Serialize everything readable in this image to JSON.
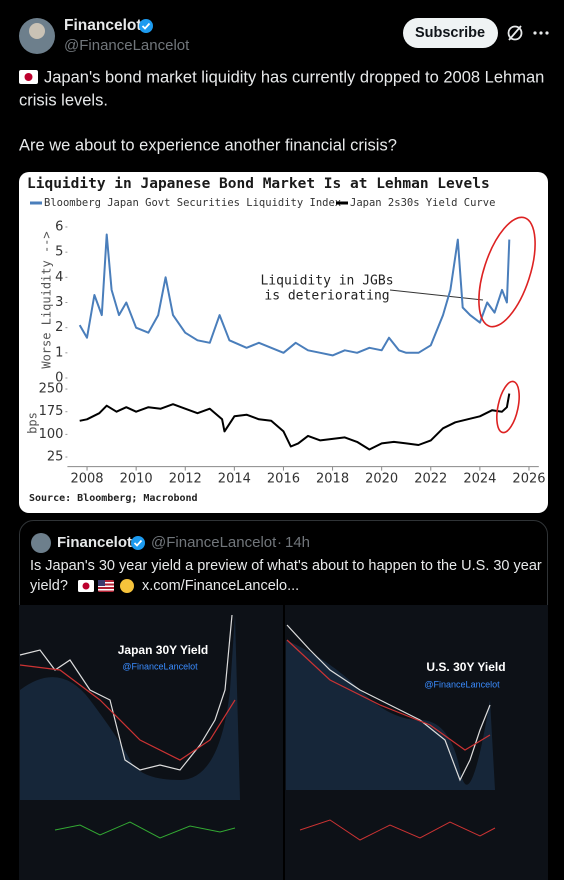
{
  "post": {
    "author": "Financelot",
    "handle": "@FinanceLancelot",
    "button": "Subscribe",
    "text_lines": [
      "Japan's bond market liquidity has currently dropped to 2008 Lehman",
      "crisis levels.",
      "Are we about to experience another financial crisis?"
    ]
  },
  "chart_data": [
    {
      "type": "line",
      "title": "Liquidity in Japanese Bond Market Is at Lehman Levels",
      "ylabel": "Worse Liquidity -->",
      "annotation": [
        "Liquidity in JGBs",
        "is deteriorating"
      ],
      "xlim": [
        2007.2,
        2026.4
      ],
      "ylim": [
        0,
        6
      ],
      "yticks": [
        0,
        1,
        2,
        3,
        4,
        5,
        6
      ],
      "series": [
        {
          "name": "Bloomberg Japan Govt Securities Liquidity Index",
          "color": "#4a7ebb",
          "x": [
            2007.7,
            2008.0,
            2008.3,
            2008.6,
            2008.8,
            2009.0,
            2009.3,
            2009.6,
            2010.0,
            2010.5,
            2010.9,
            2011.2,
            2011.5,
            2012.0,
            2012.5,
            2013.0,
            2013.4,
            2013.8,
            2014.5,
            2015.0,
            2015.5,
            2016.0,
            2016.5,
            2017.0,
            2017.5,
            2018.0,
            2018.5,
            2019.0,
            2019.5,
            2020.0,
            2020.3,
            2020.7,
            2021.0,
            2021.5,
            2022.0,
            2022.5,
            2022.8,
            2023.1,
            2023.3,
            2023.6,
            2024.0,
            2024.3,
            2024.6,
            2024.9,
            2025.1,
            2025.2
          ],
          "values": [
            2.1,
            1.6,
            3.3,
            2.5,
            5.7,
            3.5,
            2.5,
            3.0,
            2.0,
            1.8,
            2.5,
            4.0,
            2.5,
            1.8,
            1.5,
            1.4,
            2.5,
            1.5,
            1.2,
            1.4,
            1.2,
            1.0,
            1.4,
            1.1,
            1.0,
            0.9,
            1.1,
            1.0,
            1.2,
            1.1,
            1.6,
            1.1,
            1.0,
            1.0,
            1.3,
            2.5,
            3.5,
            5.5,
            2.8,
            2.5,
            2.2,
            3.0,
            2.6,
            3.5,
            3.0,
            5.5
          ]
        }
      ]
    },
    {
      "type": "line",
      "ylabel": "bps",
      "source": "Source: Bloomberg; Macrobond",
      "xlim": [
        2007.2,
        2026.4
      ],
      "xticks": [
        2008,
        2010,
        2012,
        2014,
        2016,
        2018,
        2020,
        2022,
        2024,
        2026
      ],
      "ylim": [
        0,
        275
      ],
      "yticks": [
        25,
        100,
        175,
        250
      ],
      "series": [
        {
          "name": "Japan 2s30s Yield Curve",
          "color": "#000000",
          "x": [
            2007.7,
            2008.0,
            2008.5,
            2008.8,
            2009.2,
            2009.6,
            2010.0,
            2010.5,
            2011.0,
            2011.5,
            2012.0,
            2012.5,
            2013.0,
            2013.5,
            2013.6,
            2014.0,
            2014.5,
            2015.0,
            2015.5,
            2016.0,
            2016.3,
            2016.6,
            2017.0,
            2017.5,
            2018.0,
            2018.5,
            2019.0,
            2019.5,
            2020.0,
            2020.5,
            2021.0,
            2021.5,
            2022.0,
            2022.5,
            2023.0,
            2023.5,
            2024.0,
            2024.5,
            2024.9,
            2025.1,
            2025.2
          ],
          "values": [
            145,
            150,
            170,
            195,
            175,
            190,
            175,
            190,
            185,
            200,
            185,
            170,
            185,
            150,
            110,
            160,
            165,
            150,
            145,
            110,
            60,
            70,
            95,
            80,
            85,
            90,
            75,
            50,
            70,
            75,
            70,
            65,
            80,
            120,
            140,
            150,
            160,
            180,
            175,
            190,
            235
          ]
        }
      ]
    }
  ],
  "quoted_post": {
    "author": "Financelot",
    "handle": "@FinanceLancelot",
    "separator": "·",
    "time": "14h",
    "text_lines": [
      "Is Japan's 30 year yield a preview of what's about to happen to the U.S. 30 year",
      "yield?"
    ],
    "link": "x.com/FinanceLancelo...",
    "images": [
      {
        "title": "Japan 30Y Yield",
        "watermark": "@FinanceLancelot"
      },
      {
        "title": "U.S. 30Y Yield",
        "watermark": "@FinanceLancelot"
      }
    ]
  }
}
